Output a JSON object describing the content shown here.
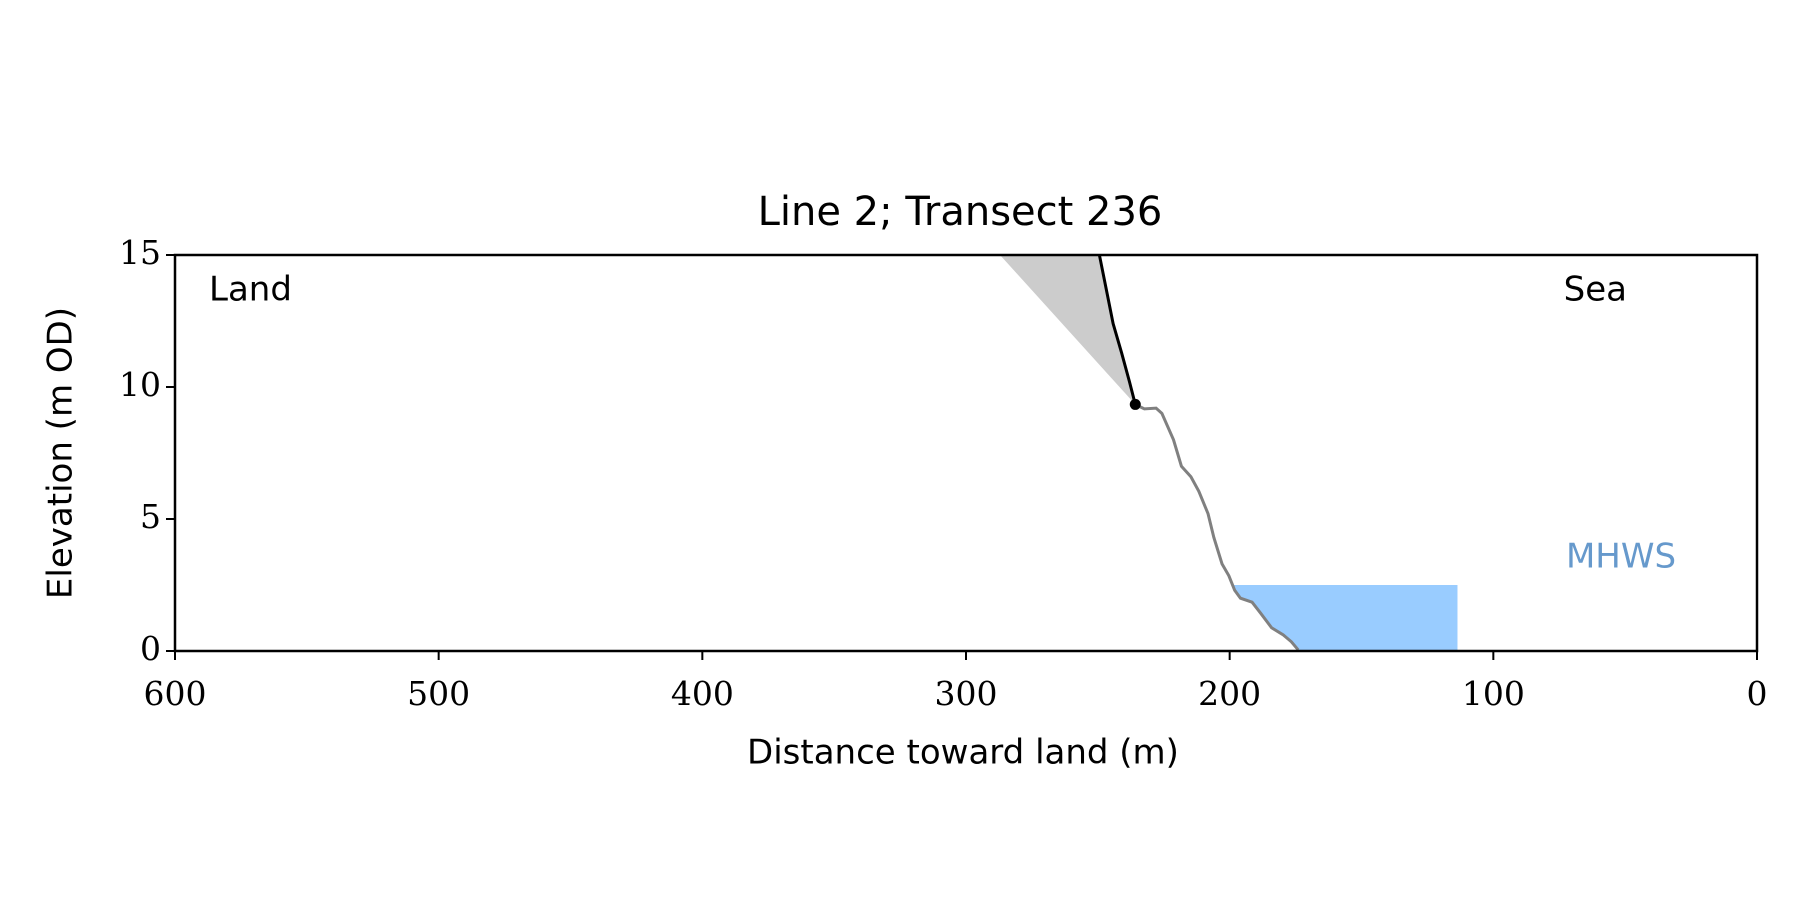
{
  "chart_data": {
    "type": "profile",
    "title": "Line 2; Transect 236",
    "xlabel": "Distance toward land (m)",
    "ylabel": "Elevation (m OD)",
    "xlim": [
      600,
      0
    ],
    "ylim": [
      0,
      15
    ],
    "xticks": [
      600,
      500,
      400,
      300,
      200,
      100,
      0
    ],
    "yticks": [
      0,
      5,
      10,
      15
    ],
    "annotations": {
      "left": "Land",
      "right": "Sea"
    },
    "series": [
      {
        "color": "#808080",
        "x": [
          235.8,
          232.3,
          227.9,
          225.7,
          221.3,
          218.3,
          214.7,
          211.7,
          208.2,
          206.0,
          202.9,
          200.3,
          198.1,
          195.9,
          191.5,
          188.4,
          184.1,
          179.7,
          176.6,
          174.0
        ],
        "values": [
          9.34,
          9.17,
          9.2,
          9.0,
          8.0,
          7.0,
          6.6,
          6.05,
          5.2,
          4.3,
          3.3,
          2.85,
          2.3,
          2.0,
          1.85,
          1.45,
          0.88,
          0.61,
          0.35,
          0.04
        ]
      },
      {
        "color": "#000000",
        "x": [
          249.4,
          246.4,
          244.2,
          241.0,
          238.0,
          235.8
        ],
        "values": [
          15,
          13.5,
          12.4,
          11.3,
          10.2,
          9.34
        ]
      }
    ],
    "shade": {
      "x": 287.1,
      "value": 15,
      "color": "#cccccc"
    },
    "mhws": {
      "label": "MHWS",
      "value": 2.5,
      "x_end": 113.6,
      "color": "#99ccff",
      "label_color": "#6699cc"
    }
  }
}
